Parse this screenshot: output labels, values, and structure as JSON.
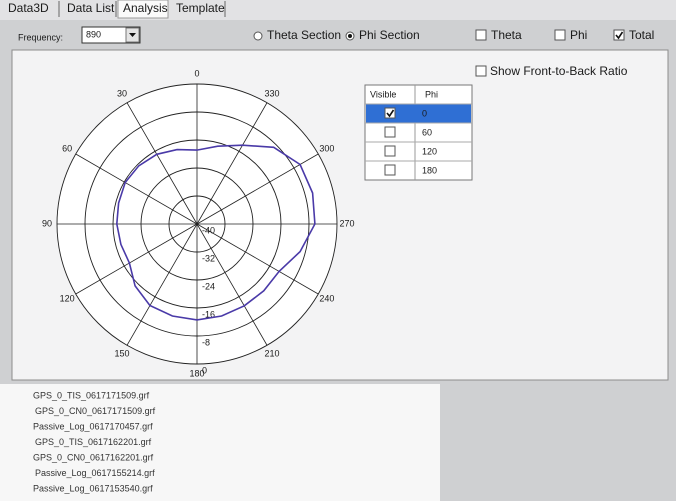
{
  "tabs": [
    "Data3D",
    "Data List",
    "Analysis",
    "Template"
  ],
  "active_tab": 2,
  "frequency": {
    "label": "Frequency:",
    "value": "890"
  },
  "section_options": [
    "Theta Section",
    "Phi Section"
  ],
  "section_selected": 1,
  "component_options": [
    "Theta",
    "Phi",
    "Total"
  ],
  "component_checked": [
    false,
    false,
    true
  ],
  "front_to_back": {
    "label": "Show Front-to-Back Ratio",
    "checked": false
  },
  "phi_table": {
    "headers": [
      "Visible",
      "Phi"
    ],
    "rows": [
      "0",
      "60",
      "120",
      "180"
    ],
    "visible": [
      true,
      false,
      false,
      false
    ],
    "selected_row": 0
  },
  "chart_data": {
    "type": "polar",
    "direction": "counterclockwise",
    "theta": [
      0,
      15,
      30,
      45,
      60,
      75,
      90,
      105,
      120,
      135,
      150,
      165,
      180,
      195,
      210,
      225,
      240,
      255,
      270,
      285,
      300,
      315,
      330,
      345
    ],
    "series": [
      {
        "color": "#4a3aa8",
        "values": [
          -18.9,
          -18,
          -17,
          -16.5,
          -16.3,
          -16.8,
          -17.1,
          -17.5,
          -17.7,
          -15,
          -13.1,
          -12.8,
          -12.6,
          -12.8,
          -13,
          -13,
          -12.9,
          -9.5,
          -6.3,
          -5.8,
          -6,
          -9,
          -14,
          -17
        ]
      }
    ],
    "rlim": [
      -40,
      0
    ],
    "rticks": [
      -40,
      -32,
      -24,
      -16,
      -8,
      0
    ],
    "thetaticks": [
      0,
      30,
      60,
      90,
      120,
      150,
      180,
      210,
      240,
      270,
      300,
      330
    ]
  },
  "files": [
    "GPS_0_TIS_0617171509.grf",
    "GPS_0_CN0_0617171509.grf",
    "Passive_Log_0617170457.grf",
    "GPS_0_TIS_0617162201.grf",
    "GPS_0_CN0_0617162201.grf",
    "Passive_Log_0617155214.grf",
    "Passive_Log_0617153540.grf"
  ]
}
